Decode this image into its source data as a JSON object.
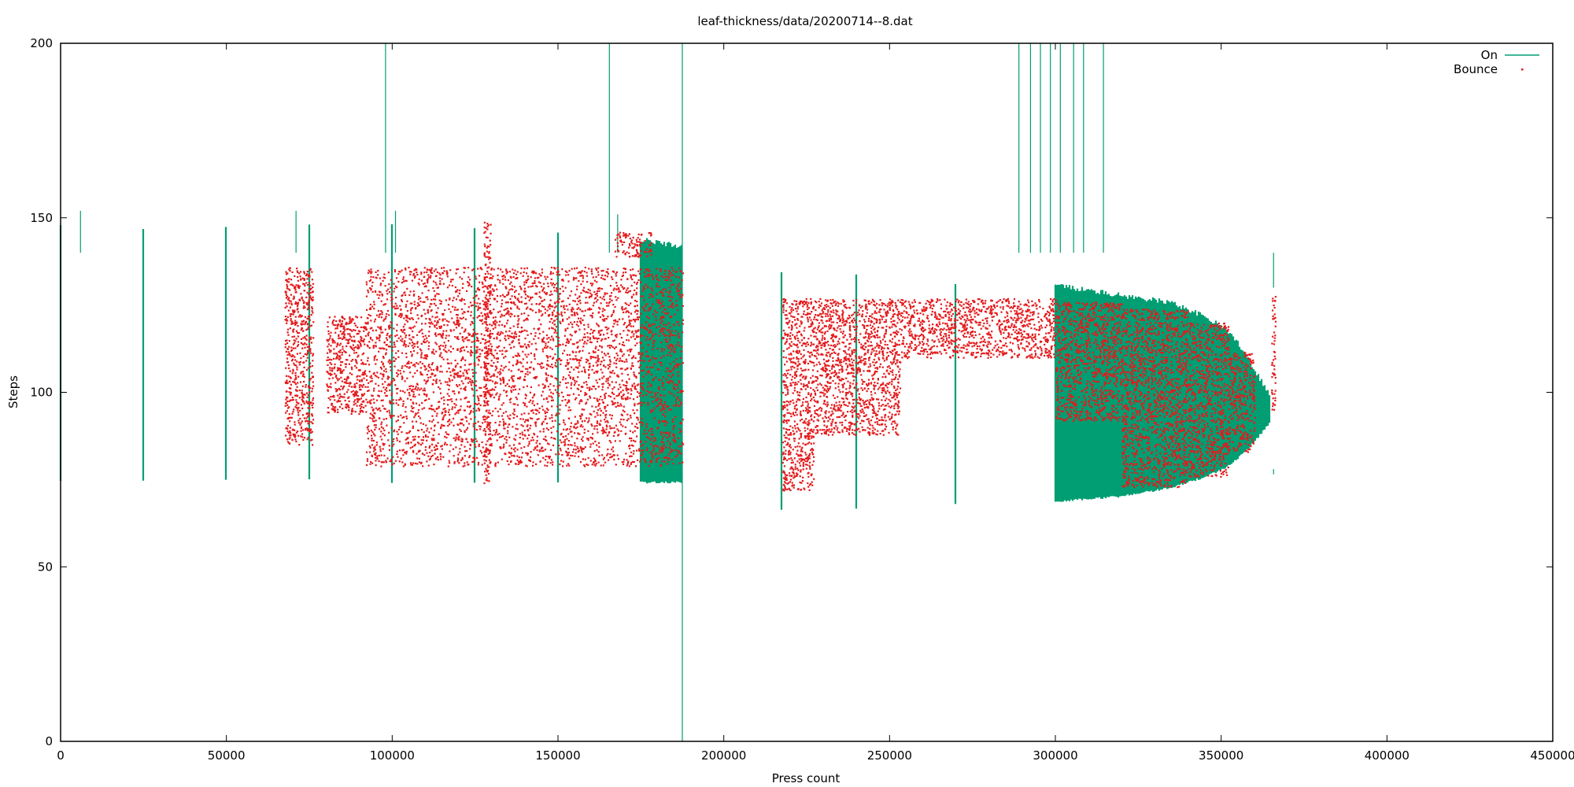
{
  "chart_data": {
    "type": "line",
    "title": "leaf-thickness/data/20200714--8.dat",
    "xlabel": "Press count",
    "ylabel": "Steps",
    "xlim": [
      0,
      450000
    ],
    "ylim": [
      0,
      200
    ],
    "xticks": [
      0,
      50000,
      100000,
      150000,
      200000,
      250000,
      300000,
      350000,
      400000,
      450000
    ],
    "yticks": [
      0,
      50,
      100,
      150,
      200
    ],
    "x_tick_labels": [
      "0",
      "50000",
      "100000",
      "150000",
      "200000",
      "250000",
      "300000",
      "350000",
      "400000",
      "450000"
    ],
    "y_tick_labels": [
      "0",
      "50",
      "100",
      "150",
      "200"
    ],
    "grid": false,
    "legend_position": "top-right",
    "series": [
      {
        "name": "On",
        "style": "vertical impulses (range band)",
        "color": "#009e73",
        "bands": [
          {
            "x": 0,
            "low": 75,
            "high": 147
          },
          {
            "x": 25000,
            "low": 75,
            "high": 146
          },
          {
            "x": 50000,
            "low": 75.5,
            "high": 146
          },
          {
            "x": 75000,
            "low": 75.5,
            "high": 147
          },
          {
            "x": 100000,
            "low": 74.5,
            "high": 147
          },
          {
            "x": 125000,
            "low": 74.5,
            "high": 146
          },
          {
            "x": 150000,
            "low": 74.5,
            "high": 145
          },
          {
            "x": 175000,
            "low": 74.5,
            "high": 143
          },
          {
            "x": 187500,
            "low": 74.5,
            "high": 141
          },
          {
            "x": 217500,
            "low": 66.5,
            "high": 134
          },
          {
            "x": 240000,
            "low": 67,
            "high": 133
          },
          {
            "x": 270000,
            "low": 68,
            "high": 131
          },
          {
            "x": 300000,
            "low": 69,
            "high": 130
          },
          {
            "x": 320000,
            "low": 70.5,
            "high": 127
          },
          {
            "x": 335000,
            "low": 73,
            "high": 125
          },
          {
            "x": 345000,
            "low": 76,
            "high": 121
          },
          {
            "x": 352000,
            "low": 79,
            "high": 117
          },
          {
            "x": 357000,
            "low": 83,
            "high": 111
          },
          {
            "x": 360000,
            "low": 86,
            "high": 106
          },
          {
            "x": 362500,
            "low": 89,
            "high": 102
          },
          {
            "x": 365000,
            "low": 92,
            "high": 98
          }
        ],
        "spikes": [
          {
            "x": 6000,
            "y": 152
          },
          {
            "x": 71000,
            "y": 152
          },
          {
            "x": 98000,
            "y": 200
          },
          {
            "x": 101000,
            "y": 152
          },
          {
            "x": 165500,
            "y": 200
          },
          {
            "x": 168000,
            "y": 151
          },
          {
            "x": 187500,
            "y": 200,
            "low": 0
          },
          {
            "x": 289000,
            "y": 200
          },
          {
            "x": 292500,
            "y": 200
          },
          {
            "x": 295500,
            "y": 200
          },
          {
            "x": 298500,
            "y": 200
          },
          {
            "x": 301500,
            "y": 200
          },
          {
            "x": 305500,
            "y": 200
          },
          {
            "x": 308500,
            "y": 200
          },
          {
            "x": 314500,
            "y": 200
          },
          {
            "x": 365800,
            "y": 130
          },
          {
            "x": 365800,
            "y": 78,
            "low": 76.5
          }
        ]
      },
      {
        "name": "Bounce",
        "style": "points",
        "color": "#e41a1c",
        "clusters": [
          {
            "x0": 67500,
            "x1": 76000,
            "low": 85,
            "high": 136
          },
          {
            "x0": 80000,
            "x1": 92000,
            "low": 94,
            "high": 122
          },
          {
            "x0": 92000,
            "x1": 187500,
            "low": 79,
            "high": 136
          },
          {
            "x0": 127500,
            "x1": 129500,
            "low": 74,
            "high": 149
          },
          {
            "x0": 167000,
            "x1": 178000,
            "low": 139,
            "high": 146
          },
          {
            "x0": 217500,
            "x1": 227000,
            "low": 72,
            "high": 127
          },
          {
            "x0": 227000,
            "x1": 253000,
            "low": 88,
            "high": 127
          },
          {
            "x0": 253000,
            "x1": 300000,
            "low": 110,
            "high": 127
          },
          {
            "x0": 300000,
            "x1": 320000,
            "low": 92,
            "high": 126
          },
          {
            "x0": 320000,
            "x1": 340000,
            "low": 73,
            "high": 124
          },
          {
            "x0": 340000,
            "x1": 352000,
            "low": 76,
            "high": 120
          },
          {
            "x0": 352000,
            "x1": 360000,
            "low": 83,
            "high": 112
          },
          {
            "x0": 365000,
            "x1": 366200,
            "low": 94,
            "high": 128
          }
        ]
      }
    ]
  }
}
